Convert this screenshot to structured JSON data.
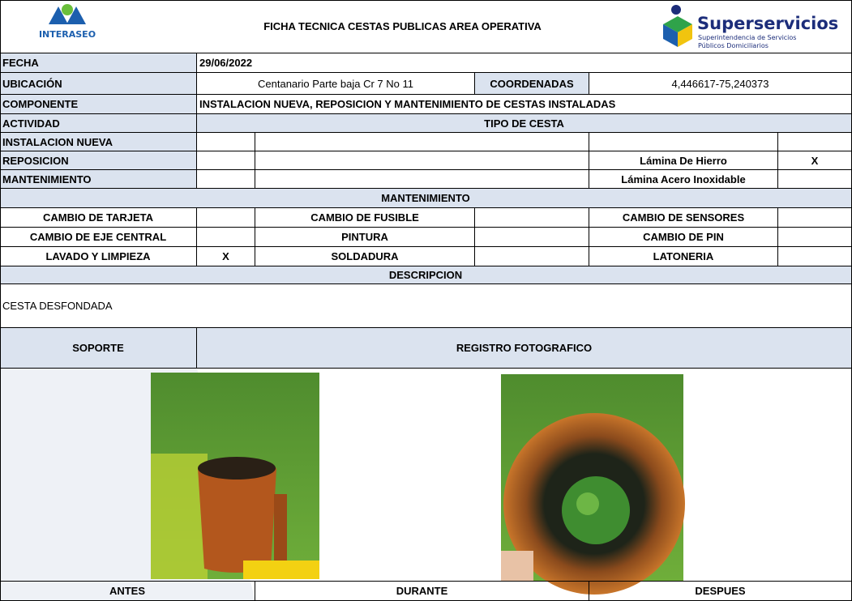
{
  "header": {
    "title": "FICHA TECNICA CESTAS PUBLICAS AREA OPERATIVA",
    "left_logo": {
      "text": "INTERASEO"
    },
    "right_logo": {
      "name": "Superservicios",
      "line1": "Superintendencia de Servicios",
      "line2": "Públicos Domiciliarios"
    }
  },
  "form": {
    "fecha": {
      "label": "FECHA",
      "value": "29/06/2022"
    },
    "ubicacion": {
      "label": "UBICACIÓN",
      "value": "Centanario Parte baja Cr 7 No 11"
    },
    "coordenadas": {
      "label": "COORDENADAS",
      "value": "4,446617-75,240373"
    },
    "componente": {
      "label": "COMPONENTE",
      "value": "INSTALACION NUEVA, REPOSICION Y MANTENIMIENTO DE CESTAS INSTALADAS"
    },
    "actividad": {
      "label": "ACTIVIDAD"
    },
    "tipo_cesta": {
      "label": "TIPO DE CESTA"
    },
    "instalacion_nueva": {
      "label": "INSTALACION NUEVA"
    },
    "reposicion": {
      "label": "REPOSICION",
      "tipo": "Lámina De Hierro",
      "mark": "X"
    },
    "mantenimiento": {
      "label": "MANTENIMIENTO",
      "tipo": "Lámina Acero Inoxidable"
    }
  },
  "mantenimiento": {
    "title": "MANTENIMIENTO",
    "rows": [
      [
        {
          "label": "CAMBIO DE TARJETA"
        },
        {
          "label": "CAMBIO DE FUSIBLE"
        },
        {
          "label": "CAMBIO DE SENSORES"
        }
      ],
      [
        {
          "label": "CAMBIO DE EJE CENTRAL"
        },
        {
          "label": "PINTURA"
        },
        {
          "label": "CAMBIO DE PIN"
        }
      ],
      [
        {
          "label": "LAVADO Y LIMPIEZA",
          "mark": "X"
        },
        {
          "label": "SOLDADURA"
        },
        {
          "label": "LATONERIA"
        }
      ]
    ]
  },
  "descripcion": {
    "title": "DESCRIPCION",
    "text": "CESTA DESFONDADA"
  },
  "soporte": {
    "label": "SOPORTE"
  },
  "registro": {
    "label": "REGISTRO FOTOGRAFICO"
  },
  "fotos": {
    "antes": "ANTES",
    "durante": "DURANTE",
    "despues": "DESPUES"
  }
}
